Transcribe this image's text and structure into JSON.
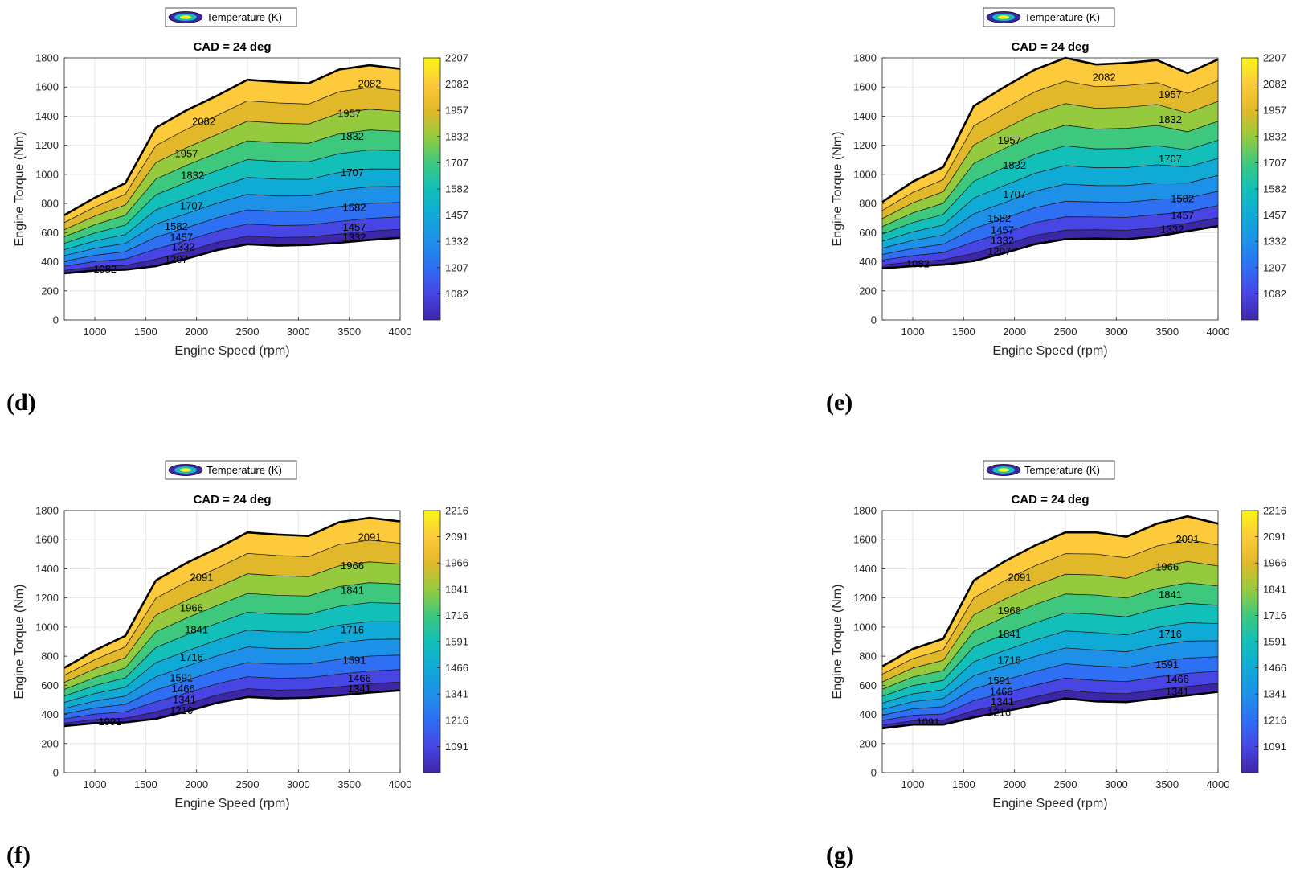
{
  "figure": {
    "panel_labels": [
      "(d)",
      "(e)",
      "(f)",
      "(g)"
    ]
  },
  "chart_data": [
    {
      "panel": "(d)",
      "type": "contour",
      "title": "CAD = 24 deg",
      "xlabel": "Engine Speed (rpm)",
      "ylabel": "Engine Torque (Nm)",
      "legend": "Temperature (K)",
      "xlim": [
        700,
        4000
      ],
      "ylim": [
        0,
        1800
      ],
      "xticks": [
        1000,
        1500,
        2000,
        2500,
        3000,
        3500,
        4000
      ],
      "yticks": [
        0,
        200,
        400,
        600,
        800,
        1000,
        1200,
        1400,
        1600,
        1800
      ],
      "colorbar": {
        "min": 957,
        "max": 2207,
        "ticks": [
          1082,
          1207,
          1332,
          1457,
          1582,
          1707,
          1832,
          1957,
          2082,
          2207
        ]
      },
      "upper_boundary": {
        "x": [
          700,
          1000,
          1300,
          1600,
          1900,
          2200,
          2500,
          2800,
          3100,
          3400,
          3700,
          4000
        ],
        "y": [
          720,
          840,
          940,
          1320,
          1440,
          1540,
          1650,
          1635,
          1625,
          1720,
          1750,
          1725
        ]
      },
      "lower_boundary": {
        "x": [
          700,
          1000,
          1300,
          1600,
          1900,
          2200,
          2500,
          2800,
          3100,
          3400,
          3700,
          4000
        ],
        "y": [
          320,
          340,
          345,
          370,
          420,
          480,
          520,
          510,
          515,
          530,
          550,
          565
        ]
      },
      "contour_levels": [
        1082,
        1207,
        1332,
        1457,
        1582,
        1707,
        1832,
        1957,
        2082
      ],
      "contour_labels": [
        {
          "text": "1082",
          "x": 1100,
          "y": 348
        },
        {
          "text": "1207",
          "x": 1800,
          "y": 415
        },
        {
          "text": "1332",
          "x": 1870,
          "y": 500
        },
        {
          "text": "1457",
          "x": 1850,
          "y": 565
        },
        {
          "text": "1582",
          "x": 1800,
          "y": 640
        },
        {
          "text": "1707",
          "x": 1950,
          "y": 780
        },
        {
          "text": "1832",
          "x": 1960,
          "y": 990
        },
        {
          "text": "1957",
          "x": 1900,
          "y": 1140
        },
        {
          "text": "2082",
          "x": 2070,
          "y": 1360
        },
        {
          "text": "1582",
          "x": 3550,
          "y": 770
        },
        {
          "text": "1457",
          "x": 3550,
          "y": 635
        },
        {
          "text": "1332",
          "x": 3550,
          "y": 565
        },
        {
          "text": "1707",
          "x": 3530,
          "y": 1010
        },
        {
          "text": "1832",
          "x": 3530,
          "y": 1260
        },
        {
          "text": "1957",
          "x": 3500,
          "y": 1415
        },
        {
          "text": "2082",
          "x": 3700,
          "y": 1620
        }
      ]
    },
    {
      "panel": "(e)",
      "type": "contour",
      "title": "CAD = 24 deg",
      "xlabel": "Engine Speed (rpm)",
      "ylabel": "Engine Torque (Nm)",
      "legend": "Temperature (K)",
      "xlim": [
        700,
        4000
      ],
      "ylim": [
        0,
        1800
      ],
      "xticks": [
        1000,
        1500,
        2000,
        2500,
        3000,
        3500,
        4000
      ],
      "yticks": [
        0,
        200,
        400,
        600,
        800,
        1000,
        1200,
        1400,
        1600,
        1800
      ],
      "colorbar": {
        "min": 957,
        "max": 2207,
        "ticks": [
          1082,
          1207,
          1332,
          1457,
          1582,
          1707,
          1832,
          1957,
          2082,
          2207
        ]
      },
      "upper_boundary": {
        "x": [
          700,
          1000,
          1300,
          1600,
          1900,
          2200,
          2500,
          2800,
          3100,
          3400,
          3700,
          4000
        ],
        "y": [
          810,
          950,
          1050,
          1470,
          1600,
          1720,
          1800,
          1755,
          1765,
          1785,
          1695,
          1790
        ]
      },
      "lower_boundary": {
        "x": [
          700,
          1000,
          1300,
          1600,
          1900,
          2200,
          2500,
          2800,
          3100,
          3400,
          3700,
          4000
        ],
        "y": [
          355,
          370,
          380,
          405,
          460,
          520,
          555,
          560,
          555,
          575,
          610,
          645
        ]
      },
      "contour_levels": [
        1082,
        1207,
        1332,
        1457,
        1582,
        1707,
        1832,
        1957,
        2082
      ],
      "contour_labels": [
        {
          "text": "1082",
          "x": 1050,
          "y": 385
        },
        {
          "text": "1207",
          "x": 1850,
          "y": 470
        },
        {
          "text": "1332",
          "x": 1880,
          "y": 545
        },
        {
          "text": "1457",
          "x": 1880,
          "y": 615
        },
        {
          "text": "1582",
          "x": 1850,
          "y": 695
        },
        {
          "text": "1707",
          "x": 2000,
          "y": 860
        },
        {
          "text": "1832",
          "x": 2000,
          "y": 1060
        },
        {
          "text": "1957",
          "x": 1950,
          "y": 1230
        },
        {
          "text": "2082",
          "x": 2880,
          "y": 1665
        },
        {
          "text": "1582",
          "x": 3650,
          "y": 830
        },
        {
          "text": "1457",
          "x": 3650,
          "y": 715
        },
        {
          "text": "1332",
          "x": 3550,
          "y": 620
        },
        {
          "text": "1707",
          "x": 3530,
          "y": 1105
        },
        {
          "text": "1832",
          "x": 3530,
          "y": 1375
        },
        {
          "text": "1957",
          "x": 3530,
          "y": 1545
        }
      ]
    },
    {
      "panel": "(f)",
      "type": "contour",
      "title": "CAD = 24 deg",
      "xlabel": "Engine Speed (rpm)",
      "ylabel": "Engine Torque (Nm)",
      "legend": "Temperature (K)",
      "xlim": [
        700,
        4000
      ],
      "ylim": [
        0,
        1800
      ],
      "xticks": [
        1000,
        1500,
        2000,
        2500,
        3000,
        3500,
        4000
      ],
      "yticks": [
        0,
        200,
        400,
        600,
        800,
        1000,
        1200,
        1400,
        1600,
        1800
      ],
      "colorbar": {
        "min": 966,
        "max": 2216,
        "ticks": [
          1091,
          1216,
          1341,
          1466,
          1591,
          1716,
          1841,
          1966,
          2091,
          2216
        ]
      },
      "upper_boundary": {
        "x": [
          700,
          1000,
          1300,
          1600,
          1900,
          2200,
          2500,
          2800,
          3100,
          3400,
          3700,
          4000
        ],
        "y": [
          720,
          840,
          940,
          1320,
          1440,
          1540,
          1650,
          1635,
          1625,
          1720,
          1750,
          1725
        ]
      },
      "lower_boundary": {
        "x": [
          700,
          1000,
          1300,
          1600,
          1900,
          2200,
          2500,
          2800,
          3100,
          3400,
          3700,
          4000
        ],
        "y": [
          320,
          340,
          345,
          370,
          420,
          480,
          520,
          510,
          515,
          530,
          550,
          565
        ]
      },
      "contour_levels": [
        1091,
        1216,
        1341,
        1466,
        1591,
        1716,
        1841,
        1966,
        2091
      ],
      "contour_labels": [
        {
          "text": "1091",
          "x": 1150,
          "y": 348
        },
        {
          "text": "1216",
          "x": 1850,
          "y": 425
        },
        {
          "text": "1341",
          "x": 1880,
          "y": 500
        },
        {
          "text": "1466",
          "x": 1870,
          "y": 575
        },
        {
          "text": "1591",
          "x": 1850,
          "y": 650
        },
        {
          "text": "1716",
          "x": 1950,
          "y": 790
        },
        {
          "text": "1841",
          "x": 2000,
          "y": 980
        },
        {
          "text": "1966",
          "x": 1950,
          "y": 1130
        },
        {
          "text": "2091",
          "x": 2050,
          "y": 1340
        },
        {
          "text": "1591",
          "x": 3550,
          "y": 770
        },
        {
          "text": "1466",
          "x": 3600,
          "y": 645
        },
        {
          "text": "1341",
          "x": 3600,
          "y": 575
        },
        {
          "text": "1716",
          "x": 3530,
          "y": 980
        },
        {
          "text": "1841",
          "x": 3530,
          "y": 1250
        },
        {
          "text": "1966",
          "x": 3530,
          "y": 1420
        },
        {
          "text": "2091",
          "x": 3700,
          "y": 1615
        }
      ]
    },
    {
      "panel": "(g)",
      "type": "contour",
      "title": "CAD = 24 deg",
      "xlabel": "Engine Speed (rpm)",
      "ylabel": "Engine Torque (Nm)",
      "legend": "Temperature (K)",
      "xlim": [
        700,
        4000
      ],
      "ylim": [
        0,
        1800
      ],
      "xticks": [
        1000,
        1500,
        2000,
        2500,
        3000,
        3500,
        4000
      ],
      "yticks": [
        0,
        200,
        400,
        600,
        800,
        1000,
        1200,
        1400,
        1600,
        1800
      ],
      "colorbar": {
        "min": 966,
        "max": 2216,
        "ticks": [
          1091,
          1216,
          1341,
          1466,
          1591,
          1716,
          1841,
          1966,
          2091,
          2216
        ]
      },
      "upper_boundary": {
        "x": [
          700,
          1000,
          1300,
          1600,
          1900,
          2200,
          2500,
          2800,
          3100,
          3400,
          3700,
          4000
        ],
        "y": [
          730,
          850,
          920,
          1320,
          1450,
          1560,
          1650,
          1650,
          1620,
          1710,
          1760,
          1710
        ]
      },
      "lower_boundary": {
        "x": [
          700,
          1000,
          1300,
          1600,
          1900,
          2200,
          2500,
          2800,
          3100,
          3400,
          3700,
          4000
        ],
        "y": [
          305,
          330,
          330,
          380,
          420,
          465,
          510,
          490,
          485,
          510,
          530,
          555
        ]
      },
      "contour_levels": [
        1091,
        1216,
        1341,
        1466,
        1591,
        1716,
        1841,
        1966,
        2091
      ],
      "contour_labels": [
        {
          "text": "1091",
          "x": 1150,
          "y": 345
        },
        {
          "text": "1216",
          "x": 1850,
          "y": 410
        },
        {
          "text": "1341",
          "x": 1880,
          "y": 485
        },
        {
          "text": "1466",
          "x": 1870,
          "y": 555
        },
        {
          "text": "1591",
          "x": 1850,
          "y": 630
        },
        {
          "text": "1716",
          "x": 1950,
          "y": 770
        },
        {
          "text": "1841",
          "x": 1950,
          "y": 950
        },
        {
          "text": "1966",
          "x": 1950,
          "y": 1110
        },
        {
          "text": "2091",
          "x": 2050,
          "y": 1340
        },
        {
          "text": "1591",
          "x": 3500,
          "y": 740
        },
        {
          "text": "1466",
          "x": 3600,
          "y": 640
        },
        {
          "text": "1341",
          "x": 3600,
          "y": 555
        },
        {
          "text": "1716",
          "x": 3530,
          "y": 950
        },
        {
          "text": "1841",
          "x": 3530,
          "y": 1220
        },
        {
          "text": "1966",
          "x": 3500,
          "y": 1410
        },
        {
          "text": "2091",
          "x": 3700,
          "y": 1600
        }
      ]
    }
  ]
}
